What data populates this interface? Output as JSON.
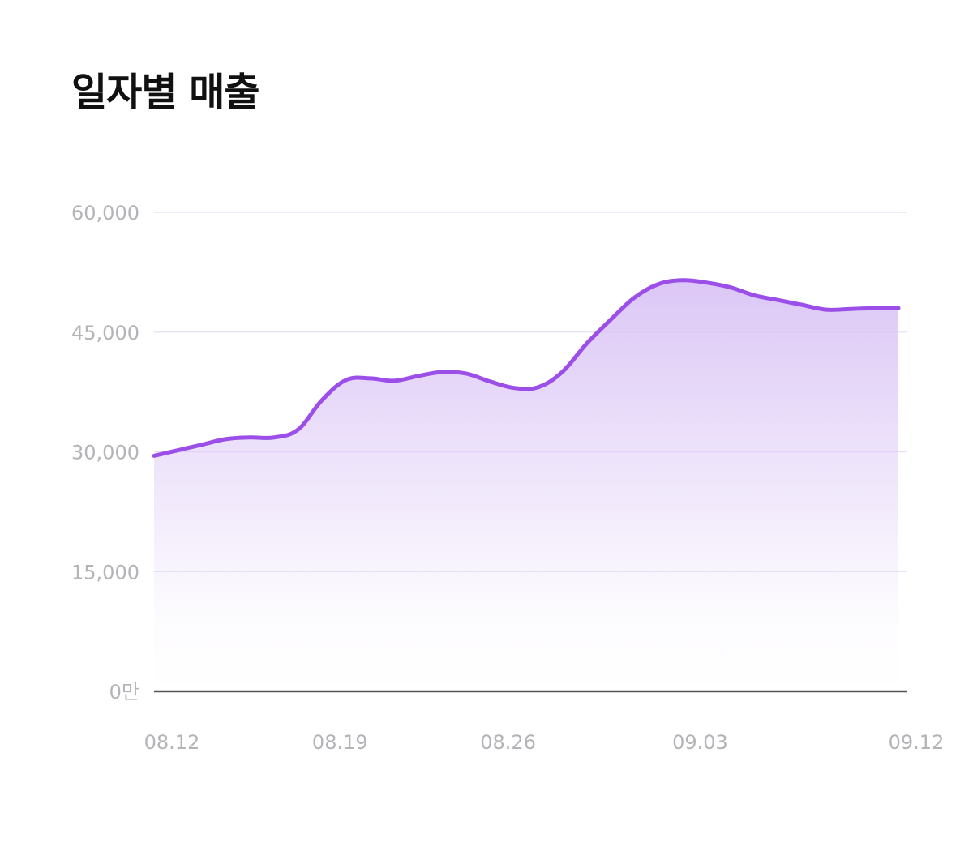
{
  "title": "일자별 매출",
  "colors": {
    "line": "#9b4fe8",
    "area_top": "#dcc7f6",
    "grid": "#e6e0f2",
    "baseline": "#555555",
    "tick_text": "#b3b3b8",
    "title_text": "#111111"
  },
  "chart_data": {
    "type": "area",
    "title": "일자별 매출",
    "xlabel": "",
    "ylabel": "",
    "ylim": [
      0,
      60000
    ],
    "yticks": [
      {
        "value": 0,
        "label": "0만"
      },
      {
        "value": 15000,
        "label": "15,000"
      },
      {
        "value": 30000,
        "label": "30,000"
      },
      {
        "value": 45000,
        "label": "45,000"
      },
      {
        "value": 60000,
        "label": "60,000"
      }
    ],
    "xticks": [
      "08.12",
      "08.19",
      "08.26",
      "09.03",
      "09.12"
    ],
    "grid": true,
    "legend": "none",
    "x": [
      "08.12",
      "08.13",
      "08.14",
      "08.15",
      "08.16",
      "08.17",
      "08.18",
      "08.19",
      "08.20",
      "08.21",
      "08.22",
      "08.23",
      "08.24",
      "08.25",
      "08.26",
      "08.27",
      "08.28",
      "08.29",
      "08.30",
      "08.31",
      "09.01",
      "09.02",
      "09.03",
      "09.04",
      "09.05",
      "09.06",
      "09.07",
      "09.08",
      "09.09",
      "09.10",
      "09.11",
      "09.12"
    ],
    "series": [
      {
        "values": [
          29500,
          30200,
          30900,
          31600,
          31800,
          31800,
          32800,
          36500,
          39000,
          39200,
          38900,
          39500,
          40000,
          39800,
          38800,
          38000,
          38100,
          40000,
          43500,
          46500,
          49300,
          51000,
          51500,
          51200,
          50600,
          49600,
          49000,
          48400,
          47800,
          47900,
          48000,
          48000
        ]
      }
    ]
  }
}
